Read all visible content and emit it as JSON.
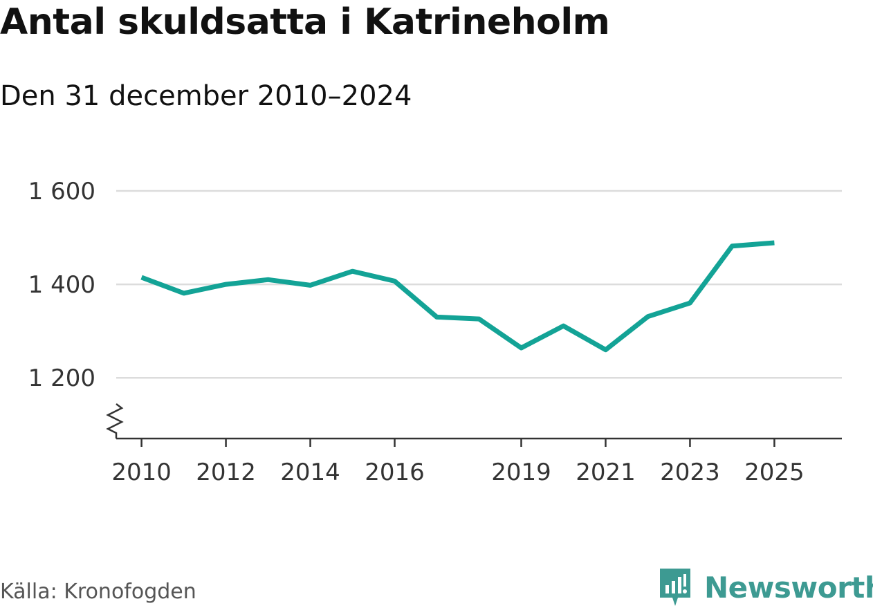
{
  "header": {
    "title": "Antal skuldsatta i Katrineholm",
    "subtitle": "Den 31 december 2010–2024"
  },
  "footer": {
    "source": "Källa: Kronofogden",
    "brand": "Newsworthy"
  },
  "colors": {
    "line": "#13a396",
    "grid": "#dcdcdc",
    "axis": "#333333",
    "brand": "#3d9a92"
  },
  "icons": {
    "axis_break": "zigzag-break-icon",
    "logo": "newsworthy-logo-icon"
  },
  "chart_data": {
    "type": "line",
    "title": "Antal skuldsatta i Katrineholm",
    "subtitle": "Den 31 december 2010–2024",
    "xlabel": "",
    "ylabel": "",
    "x_ticks": [
      2010,
      2012,
      2014,
      2016,
      2019,
      2021,
      2023,
      2025
    ],
    "y_ticks": [
      {
        "value": 1200,
        "label": "1 200"
      },
      {
        "value": 1400,
        "label": "1 400"
      },
      {
        "value": 1600,
        "label": "1 600"
      }
    ],
    "xlim": [
      2009.4,
      2026.6
    ],
    "ylim": [
      1070,
      1600
    ],
    "y_axis_break": true,
    "grid": true,
    "legend": "none",
    "series": [
      {
        "x": [
          2010,
          2011,
          2012,
          2013,
          2014,
          2015,
          2016,
          2017,
          2018,
          2019,
          2020,
          2021,
          2022,
          2023,
          2024,
          2025
        ],
        "values": [
          1415,
          1381,
          1400,
          1410,
          1398,
          1428,
          1407,
          1330,
          1326,
          1264,
          1311,
          1260,
          1331,
          1360,
          1482,
          1489
        ]
      }
    ]
  }
}
